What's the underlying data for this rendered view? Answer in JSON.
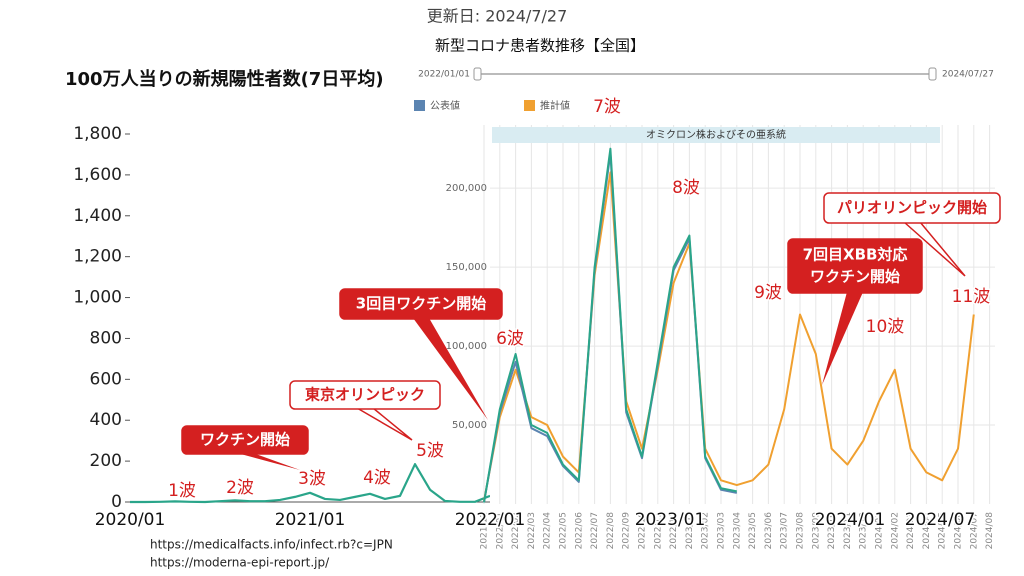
{
  "header": {
    "updated": "更新日: 2024/7/27"
  },
  "slider": {
    "start": "2022/01/01",
    "end": "2024/07/27"
  },
  "sources": [
    "https://medicalfacts.info/infect.rb?c=JPN",
    "https://moderna-epi-report.jp/"
  ],
  "annotations": [
    "1波",
    "2波",
    "3波",
    "4波",
    "5波",
    "6波",
    "7波",
    "8波",
    "9波",
    "10波",
    "11波",
    "ワクチン開始",
    "東京オリンピック",
    "3回目ワクチン開始",
    "7回目XBB対応",
    "ワクチン開始",
    "パリオリンピック開始",
    "オミクロン株およびその亜系統"
  ],
  "chart_data": [
    {
      "type": "line",
      "title": "100万人当りの新規陽性者数(7日平均)",
      "categories": [
        "2020/01",
        null,
        null,
        null,
        null,
        null,
        null,
        null,
        null,
        null,
        null,
        null,
        "2021/01",
        null,
        null,
        null,
        null,
        null,
        null,
        null,
        null,
        null,
        null,
        null,
        "2022/01",
        null,
        null,
        null,
        null,
        null,
        null,
        null,
        null,
        null,
        null,
        null,
        "2023/01",
        null,
        null,
        null,
        null,
        null,
        null,
        null,
        null,
        null,
        null,
        null,
        "2024/01",
        null,
        null,
        null,
        null,
        null,
        "2024/07"
      ],
      "series": [
        {
          "color": "#2aa58a",
          "values": [
            0,
            0,
            1,
            3,
            1,
            0,
            4,
            8,
            4,
            4,
            10,
            25,
            45,
            15,
            10,
            25,
            40,
            15,
            30,
            185,
            60,
            5,
            1,
            1,
            30,
            null,
            null,
            null,
            null,
            null,
            null,
            null,
            null,
            null,
            null,
            null,
            null,
            null,
            null,
            null,
            null,
            null,
            null,
            null,
            null,
            null,
            null,
            null,
            null,
            null,
            null,
            null,
            null,
            null,
            null
          ]
        }
      ],
      "ylim": [
        0,
        1800
      ],
      "yticks": [
        0,
        {
          "value": 200,
          "label": "200"
        },
        400,
        600,
        800,
        {
          "value": 1000,
          "label": "1,000"
        },
        {
          "value": 1200,
          "label": "1,200"
        },
        {
          "value": 1400,
          "label": "1,400"
        },
        {
          "value": 1600,
          "label": "1,600"
        },
        {
          "value": 1800,
          "label": "1,800"
        }
      ]
    },
    {
      "type": "line",
      "title": "新型コロナ患者数推移【全国】",
      "categories": [
        "2021/12",
        "2022/01",
        "2022/02",
        "2022/03",
        "2022/04",
        "2022/05",
        "2022/06",
        "2022/07",
        "2022/08",
        "2022/09",
        "2022/10",
        "2022/11",
        "2022/12",
        "2023/01",
        "2023/02",
        "2023/03",
        "2023/04",
        "2023/05",
        "2023/06",
        "2023/07",
        "2023/08",
        "2023/09",
        "2023/10",
        "2023/11",
        "2023/12",
        "2024/01",
        "2024/02",
        "2024/03",
        "2024/04",
        "2024/05",
        "2024/06",
        "2024/07",
        "2024/08"
      ],
      "series": [
        {
          "name": "推計値",
          "color": "#f0a030",
          "values": [
            2000,
            55000,
            85000,
            55000,
            50000,
            30000,
            20000,
            145000,
            210000,
            65000,
            35000,
            85000,
            140000,
            165000,
            35000,
            15000,
            12000,
            15000,
            25000,
            60000,
            120000,
            95000,
            35000,
            25000,
            40000,
            65000,
            85000,
            35000,
            20000,
            15000,
            35000,
            120000,
            null
          ]
        },
        {
          "name": "公表値",
          "color": "#5b84b1",
          "values": [
            1000,
            58000,
            90000,
            48000,
            43000,
            24000,
            14000,
            148000,
            222000,
            58000,
            29000,
            88000,
            148000,
            168000,
            29000,
            9000,
            7000,
            null,
            null,
            null,
            null,
            null,
            null,
            null,
            null,
            null,
            null,
            null,
            null,
            null,
            null,
            null,
            null
          ]
        },
        {
          "color": "#2aa58a",
          "values": [
            1000,
            60000,
            95000,
            50000,
            45000,
            25000,
            15000,
            150000,
            225000,
            60000,
            30000,
            90000,
            150000,
            170000,
            30000,
            10000,
            8000,
            null,
            null,
            null,
            null,
            null,
            null,
            null,
            null,
            null,
            null,
            null,
            null,
            null,
            null,
            null,
            null
          ]
        }
      ],
      "ylim": [
        0,
        240000
      ],
      "yticks": [
        {
          "value": 50000,
          "label": "50,000"
        },
        {
          "value": 100000,
          "label": "100,000"
        },
        {
          "value": 150000,
          "label": "150,000"
        },
        {
          "value": 200000,
          "label": "200,000"
        }
      ]
    }
  ]
}
